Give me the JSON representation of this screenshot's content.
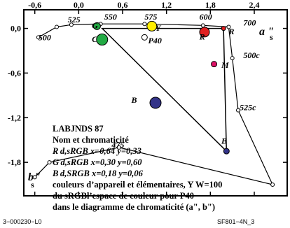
{
  "chart_data": {
    "type": "scatter",
    "x_ticks": [
      "-0,6",
      "0,0",
      "0,6",
      "1,2",
      "1,8",
      "2,4"
    ],
    "y_ticks": [
      "0,0",
      "-0,6",
      "-1,2",
      "-1,8"
    ],
    "x_tick_values": [
      -0.6,
      0.0,
      0.6,
      1.2,
      1.8,
      2.4
    ],
    "y_tick_values": [
      0.0,
      -0.6,
      -1.2,
      -1.8
    ],
    "xlim": [
      -0.75,
      2.85
    ],
    "ylim": [
      -2.25,
      0.25
    ],
    "xlabel": "a\"s",
    "ylabel": "b\"s",
    "locus_points": [
      {
        "x": -0.55,
        "y": -0.12,
        "label": "500"
      },
      {
        "x": -0.3,
        "y": 0.02,
        "label": ""
      },
      {
        "x": -0.1,
        "y": 0.05,
        "label": "525"
      },
      {
        "x": 0.3,
        "y": 0.06,
        "label": "550"
      },
      {
        "x": 0.9,
        "y": 0.06,
        "label": "575"
      },
      {
        "x": 1.7,
        "y": 0.04,
        "label": "600"
      },
      {
        "x": 2.05,
        "y": 0.02,
        "label": "700"
      },
      {
        "x": 2.1,
        "y": -0.4,
        "label": "500c"
      },
      {
        "x": 2.18,
        "y": -1.1,
        "label": "525c"
      },
      {
        "x": 2.65,
        "y": -2.1,
        "label": ""
      },
      {
        "x": 0.55,
        "y": -1.6,
        "label": "475"
      },
      {
        "x": -0.4,
        "y": -1.8,
        "label": ""
      },
      {
        "x": -0.6,
        "y": -2.0,
        "label": ""
      }
    ],
    "gamut_points": [
      {
        "x": 0.32,
        "y": 0.0,
        "name": "Gd"
      },
      {
        "x": 1.98,
        "y": 0.0,
        "name": "Rd"
      },
      {
        "x": 2.02,
        "y": -1.65,
        "name": "Bd"
      }
    ],
    "markers": [
      {
        "name": "Ge",
        "x": 0.25,
        "y": 0.03,
        "color": "#22aa44",
        "size": 5
      },
      {
        "name": "Y",
        "x": 1.0,
        "y": 0.03,
        "color": "#ffee00",
        "size": 7
      },
      {
        "name": "Re",
        "x": 1.72,
        "y": -0.05,
        "color": "#e02020",
        "size": 7
      },
      {
        "name": "Rd",
        "x": 1.98,
        "y": 0.0,
        "color": "#e02020",
        "size": 3
      },
      {
        "name": "Cd",
        "x": 0.32,
        "y": -0.15,
        "color": "#22aa44",
        "size": 8
      },
      {
        "name": "P40",
        "x": 0.9,
        "y": -0.12,
        "color": "#ffffff",
        "size": 4
      },
      {
        "name": "Md",
        "x": 1.85,
        "y": -0.48,
        "color": "#dd1166",
        "size": 4
      },
      {
        "name": "Be",
        "x": 1.05,
        "y": -1.0,
        "color": "#333388",
        "size": 8
      },
      {
        "name": "Bd",
        "x": 2.02,
        "y": -1.65,
        "color": "#333388",
        "size": 4
      }
    ],
    "annotations": [
      {
        "text": "525",
        "x": -0.15,
        "y": 0.08
      },
      {
        "text": "550",
        "x": 0.35,
        "y": 0.12
      },
      {
        "text": "575",
        "x": 0.9,
        "y": 0.12
      },
      {
        "text": "600",
        "x": 1.65,
        "y": 0.12
      },
      {
        "text": "700",
        "x": 2.25,
        "y": 0.04
      },
      {
        "text": "500",
        "x": -0.55,
        "y": -0.16
      },
      {
        "text": "500c",
        "x": 2.25,
        "y": -0.4
      },
      {
        "text": "525c",
        "x": 2.2,
        "y": -1.1
      },
      {
        "text": "475",
        "x": 0.45,
        "y": -1.6
      },
      {
        "text": "G",
        "x": 0.18,
        "y": 0.0
      },
      {
        "text": "C",
        "x": 0.18,
        "y": -0.18
      },
      {
        "text": "Y",
        "x": 1.05,
        "y": -0.03
      },
      {
        "text": "P40",
        "x": 0.95,
        "y": -0.2
      },
      {
        "text": "R",
        "x": 1.65,
        "y": -0.15
      },
      {
        "text": "R",
        "x": 2.05,
        "y": -0.08
      },
      {
        "text": "M",
        "x": 1.95,
        "y": -0.53
      },
      {
        "text": "B",
        "x": 0.72,
        "y": -1.0
      },
      {
        "text": "B",
        "x": 1.95,
        "y": -1.55
      }
    ]
  },
  "info": {
    "title": "LABJNDS 87",
    "subtitle": "Nom et chromaticité",
    "lines": [
      "R d,sRGB  x=0,64   y=0,33",
      "G d,sRGB  x=0,30   y=0,60",
      "B d,SRGB  x=0,18   y=0,06"
    ],
    "desc1": "couleurs d’appareil et élémentaires, Y W=100",
    "desc2": "du sRGBl’espace de couleur pour P40",
    "desc3": "dans le diagramme de chromaticité (a\", b\")"
  },
  "footer": {
    "left": "3−000230−L0",
    "right": "SF801−4N_3"
  }
}
